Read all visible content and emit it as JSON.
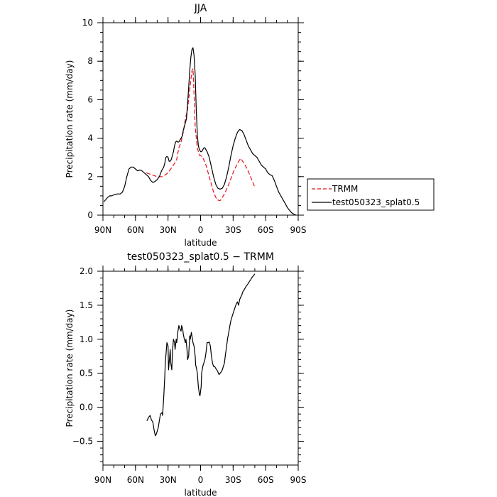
{
  "chart_data": [
    {
      "type": "line",
      "title": "JJA",
      "xlabel": "latitude",
      "ylabel": "Precipitation rate (mm/day)",
      "xlim": [
        90,
        -90
      ],
      "ylim": [
        0,
        10
      ],
      "x_ticks": [
        90,
        60,
        30,
        0,
        -30,
        -60,
        -90
      ],
      "x_tick_labels": [
        "90N",
        "60N",
        "30N",
        "0",
        "30S",
        "60S",
        "90S"
      ],
      "y_ticks": [
        0,
        2,
        4,
        6,
        8,
        10
      ],
      "y_tick_labels": [
        "0",
        "2",
        "4",
        "6",
        "8",
        "10"
      ],
      "legend_position": "right",
      "series": [
        {
          "name": "TRMM",
          "color": "#e8111a",
          "dash": "dashed",
          "x": [
            50,
            45,
            40,
            35,
            30,
            25,
            22,
            20,
            18,
            16,
            14,
            12,
            10,
            8,
            7,
            6,
            5,
            3,
            1,
            0,
            -2,
            -5,
            -8,
            -12,
            -15,
            -18,
            -22,
            -26,
            -30,
            -34,
            -37,
            -40,
            -43,
            -46,
            -50
          ],
          "y": [
            2.2,
            2.1,
            2.0,
            2.0,
            2.2,
            2.6,
            2.9,
            3.5,
            3.8,
            4.3,
            5.0,
            5.5,
            6.5,
            7.5,
            7.6,
            6.3,
            4.6,
            3.5,
            3.1,
            3.1,
            3.0,
            2.6,
            2.0,
            1.2,
            0.8,
            0.75,
            1.1,
            1.6,
            2.2,
            2.7,
            2.95,
            2.7,
            2.4,
            2.0,
            1.45
          ]
        },
        {
          "name": "test050323_splat0.5",
          "color": "#000000",
          "dash": "solid",
          "x": [
            89,
            86,
            84,
            82,
            80,
            77,
            74,
            72,
            70,
            68,
            66,
            64,
            62,
            60,
            58,
            56,
            54,
            52,
            50,
            48,
            46,
            44,
            42,
            40,
            38,
            36,
            34,
            33,
            32,
            31,
            30,
            29,
            28,
            27,
            26,
            25,
            24,
            23,
            22,
            21,
            20,
            19,
            18,
            17,
            16,
            15,
            14,
            13,
            12,
            11,
            10,
            9,
            8,
            7,
            6,
            5,
            4,
            3,
            2,
            1,
            0,
            -1,
            -2,
            -3,
            -4,
            -5,
            -6,
            -8,
            -10,
            -12,
            -14,
            -16,
            -18,
            -20,
            -22,
            -24,
            -26,
            -28,
            -30,
            -32,
            -34,
            -36,
            -38,
            -40,
            -42,
            -44,
            -46,
            -48,
            -50,
            -52,
            -54,
            -56,
            -58,
            -60,
            -62,
            -64,
            -66,
            -68,
            -70,
            -72,
            -74,
            -76,
            -78,
            -80,
            -82,
            -84,
            -86,
            -88
          ],
          "y": [
            0.7,
            0.9,
            1.0,
            1.0,
            1.05,
            1.1,
            1.1,
            1.2,
            1.5,
            2.0,
            2.4,
            2.5,
            2.5,
            2.4,
            2.3,
            2.35,
            2.3,
            2.2,
            2.1,
            2.0,
            1.8,
            1.7,
            1.75,
            1.85,
            2.0,
            2.3,
            2.5,
            2.7,
            3.0,
            3.05,
            3.0,
            2.8,
            2.8,
            2.9,
            3.1,
            3.3,
            3.6,
            3.8,
            3.85,
            3.8,
            3.8,
            3.9,
            4.0,
            4.1,
            4.4,
            4.6,
            4.8,
            5.0,
            5.8,
            6.6,
            7.5,
            8.2,
            8.6,
            8.7,
            8.3,
            7.3,
            5.5,
            4.2,
            3.6,
            3.4,
            3.3,
            3.3,
            3.4,
            3.5,
            3.5,
            3.4,
            3.3,
            3.0,
            2.5,
            2.0,
            1.6,
            1.4,
            1.35,
            1.4,
            1.6,
            2.0,
            2.5,
            3.1,
            3.6,
            4.0,
            4.3,
            4.45,
            4.4,
            4.2,
            3.9,
            3.6,
            3.4,
            3.2,
            3.1,
            3.0,
            2.8,
            2.6,
            2.5,
            2.4,
            2.2,
            2.1,
            2.05,
            1.8,
            1.5,
            1.2,
            1.0,
            0.8,
            0.6,
            0.4,
            0.25,
            0.12,
            0.05,
            0.0
          ]
        }
      ]
    },
    {
      "type": "line",
      "title": "test050323_splat0.5 − TRMM",
      "xlabel": "latitude",
      "ylabel": "Precipitation rate (mm/day)",
      "xlim": [
        90,
        -90
      ],
      "ylim": [
        -0.85,
        2.0
      ],
      "x_ticks": [
        90,
        60,
        30,
        0,
        -30,
        -60,
        -90
      ],
      "x_tick_labels": [
        "90N",
        "60N",
        "30N",
        "0",
        "30S",
        "60S",
        "90S"
      ],
      "y_ticks": [
        -0.5,
        0,
        0.5,
        1.0,
        1.5,
        2.0
      ],
      "y_tick_labels": [
        "−0.5",
        "0.0",
        "0.5",
        "1.0",
        "1.5",
        "2.0"
      ],
      "series": [
        {
          "color": "#000000",
          "dash": "solid",
          "x": [
            49.5,
            48,
            46.5,
            45.5,
            44,
            43,
            42,
            41.5,
            40.5,
            39,
            38,
            37,
            35.5,
            35,
            34,
            33,
            32.5,
            31,
            30,
            29.5,
            28.5,
            28,
            27.5,
            26.5,
            26,
            25,
            24,
            23.5,
            22.5,
            22,
            21,
            20,
            19,
            18,
            17.5,
            16.5,
            16,
            15,
            14,
            13.5,
            12.5,
            12,
            11,
            10,
            9.5,
            8.5,
            8,
            7,
            6,
            5,
            4.5,
            3.5,
            3,
            2,
            1,
            0.5,
            -0.5,
            -1,
            -2,
            -3,
            -4,
            -5,
            -6,
            -7,
            -8,
            -9,
            -10,
            -11,
            -12,
            -13,
            -14,
            -15,
            -16,
            -17,
            -18,
            -19,
            -20,
            -21,
            -22,
            -23,
            -24,
            -25,
            -26,
            -27,
            -28,
            -29,
            -30,
            -31,
            -32,
            -33,
            -34,
            -35,
            -36,
            -37,
            -38,
            -39,
            -40,
            -41,
            -42,
            -43,
            -44,
            -45,
            -46,
            -47,
            -48,
            -49,
            -50
          ],
          "y": [
            -0.2,
            -0.15,
            -0.12,
            -0.18,
            -0.22,
            -0.32,
            -0.4,
            -0.42,
            -0.38,
            -0.3,
            -0.2,
            -0.1,
            -0.08,
            -0.12,
            0.15,
            0.45,
            0.65,
            0.95,
            0.9,
            0.55,
            0.75,
            0.85,
            0.65,
            0.55,
            0.8,
            1.0,
            0.95,
            0.85,
            1.0,
            0.95,
            1.1,
            1.2,
            1.15,
            1.12,
            1.2,
            1.15,
            1.08,
            1.0,
            0.95,
            1.0,
            0.85,
            0.7,
            0.75,
            1.05,
            1.0,
            1.1,
            1.05,
            0.95,
            0.9,
            0.75,
            0.62,
            0.55,
            0.5,
            0.3,
            0.18,
            0.17,
            0.3,
            0.5,
            0.6,
            0.65,
            0.7,
            0.8,
            0.95,
            0.95,
            0.96,
            0.9,
            0.75,
            0.65,
            0.6,
            0.6,
            0.57,
            0.55,
            0.52,
            0.48,
            0.5,
            0.52,
            0.55,
            0.6,
            0.65,
            0.78,
            0.9,
            1.02,
            1.1,
            1.2,
            1.28,
            1.33,
            1.38,
            1.43,
            1.48,
            1.52,
            1.55,
            1.5,
            1.58,
            1.62,
            1.65,
            1.7,
            1.72,
            1.75,
            1.78,
            1.8,
            1.82,
            1.85,
            1.87,
            1.9,
            1.92,
            1.94,
            1.96
          ]
        }
      ]
    }
  ]
}
